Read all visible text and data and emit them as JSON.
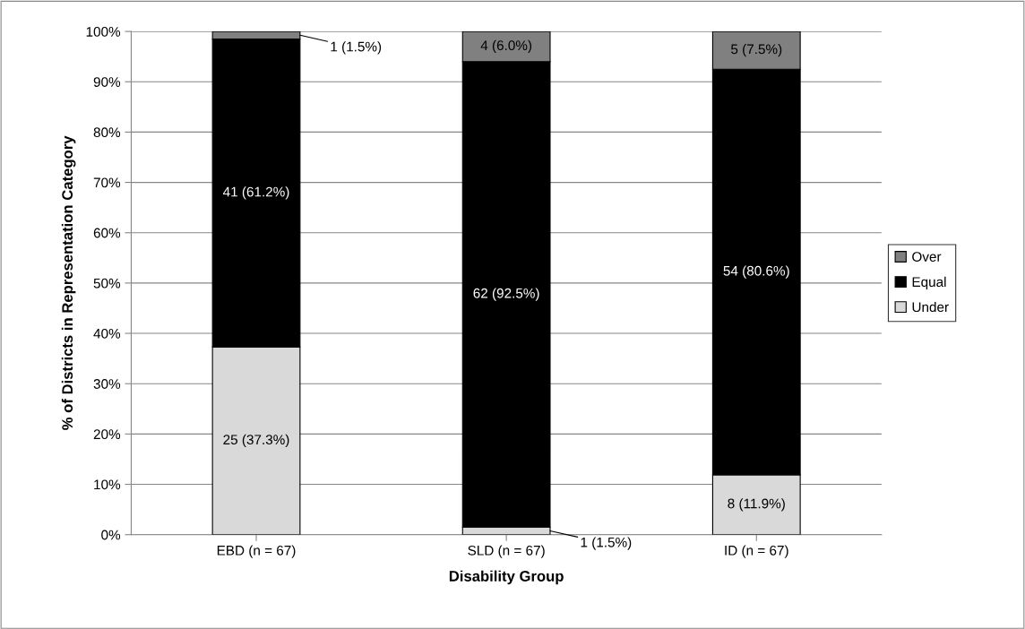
{
  "chart_data": {
    "type": "bar",
    "stacked": true,
    "xlabel": "Disability Group",
    "ylabel": "% of Districts in Representation Category",
    "categories": [
      "EBD (n = 67)",
      "SLD (n = 67)",
      "ID (n = 67)"
    ],
    "series": [
      {
        "name": "Under",
        "color": "#d9d9d9",
        "values": [
          37.3,
          1.5,
          11.9
        ],
        "value_labels": [
          "25 (37.3%)",
          "1 (1.5%)",
          "8 (11.9%)"
        ]
      },
      {
        "name": "Equal",
        "color": "#000000",
        "values": [
          61.2,
          92.5,
          80.6
        ],
        "value_labels": [
          "41 (61.2%)",
          "62 (92.5%)",
          "54 (80.6%)"
        ]
      },
      {
        "name": "Over",
        "color": "#808080",
        "values": [
          1.5,
          6.0,
          7.5
        ],
        "value_labels": [
          "1 (1.5%)",
          "4 (6.0%)",
          "5 (7.5%)"
        ]
      }
    ],
    "ylim": [
      0,
      100
    ],
    "yticks": [
      {
        "value": 0,
        "label": "0%"
      },
      {
        "value": 10,
        "label": "10%"
      },
      {
        "value": 20,
        "label": "20%"
      },
      {
        "value": 30,
        "label": "30%"
      },
      {
        "value": 40,
        "label": "40%"
      },
      {
        "value": 50,
        "label": "50%"
      },
      {
        "value": 60,
        "label": "60%"
      },
      {
        "value": 70,
        "label": "70%"
      },
      {
        "value": 80,
        "label": "80%"
      },
      {
        "value": 90,
        "label": "90%"
      },
      {
        "value": 100,
        "label": "100%"
      }
    ],
    "grid": "y",
    "legend": "right"
  }
}
